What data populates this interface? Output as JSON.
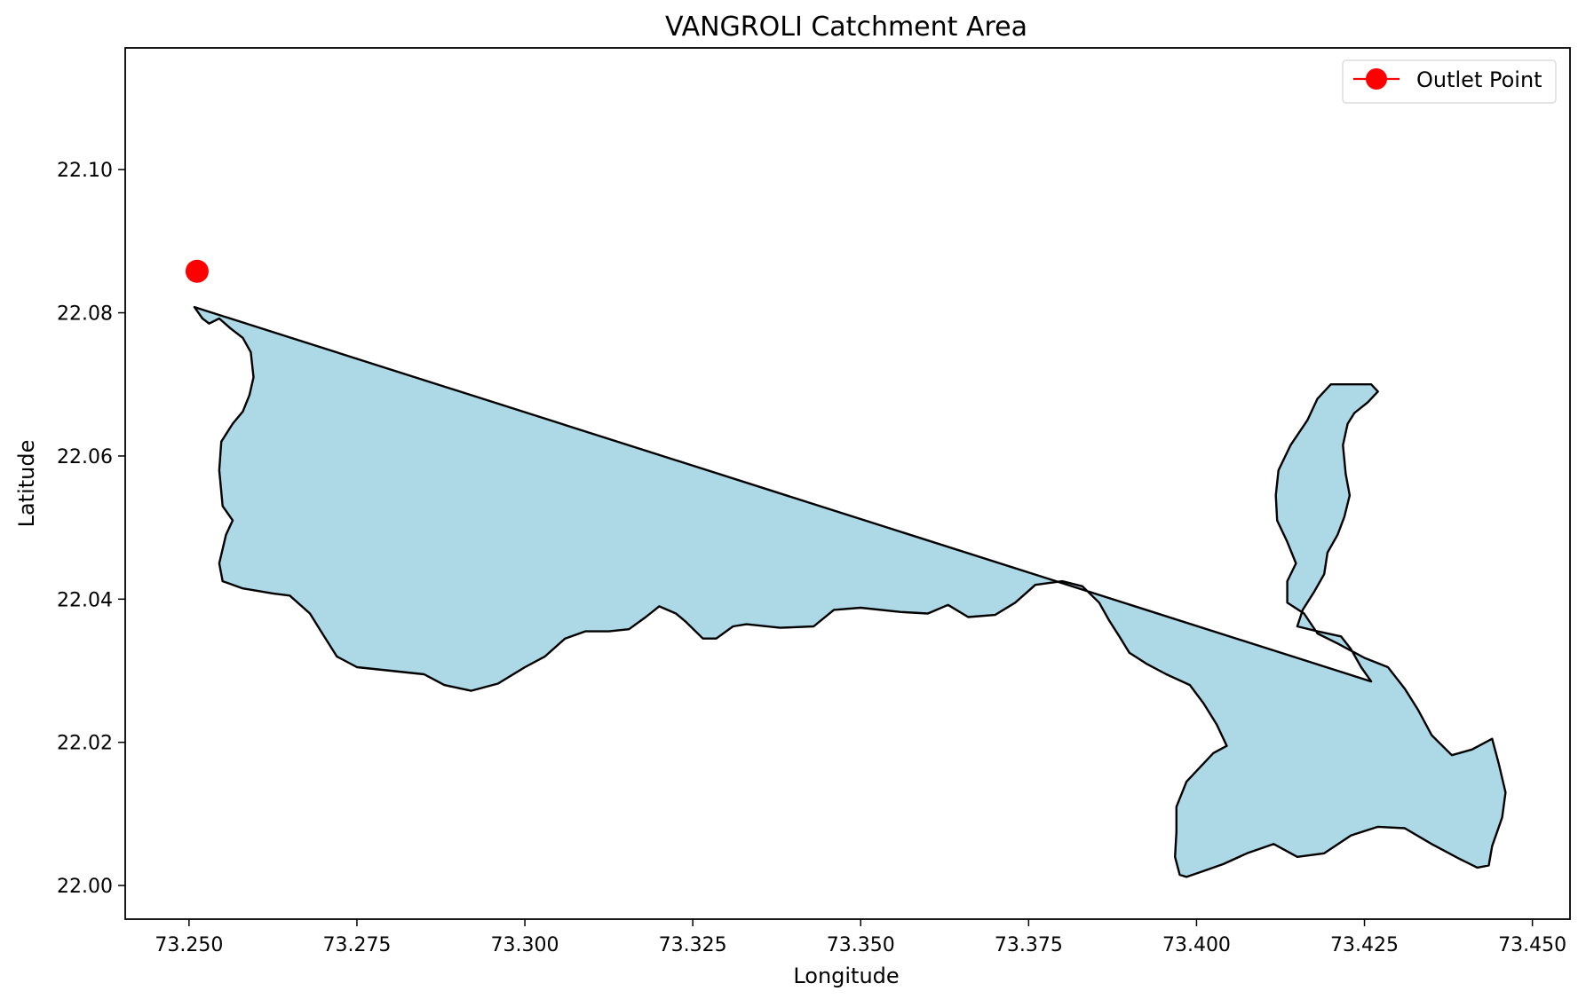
{
  "chart_data": {
    "type": "map",
    "title": "VANGROLI Catchment Area",
    "xlabel": "Longitude",
    "ylabel": "Latitude",
    "xlim": [
      73.2405,
      73.4556
    ],
    "ylim": [
      21.9953,
      22.117
    ],
    "x_ticks": [
      73.25,
      73.275,
      73.3,
      73.325,
      73.35,
      73.375,
      73.4,
      73.425,
      73.45
    ],
    "x_tick_labels": [
      "73.250",
      "73.275",
      "73.300",
      "73.325",
      "73.350",
      "73.375",
      "73.400",
      "73.425",
      "73.450"
    ],
    "y_ticks": [
      22.0,
      22.02,
      22.04,
      22.06,
      22.08,
      22.1
    ],
    "y_tick_labels": [
      "22.00",
      "22.02",
      "22.04",
      "22.06",
      "22.08",
      "22.10"
    ],
    "grid": false,
    "legend": {
      "position": "top-right",
      "entries": [
        "Outlet Point"
      ]
    },
    "outlet": {
      "name": "Outlet Point",
      "lon": 73.2512,
      "lat": 22.0858
    },
    "colors": {
      "catchment_fill": "#add8e6",
      "catchment_edge": "#000000",
      "outlet": "#ff0000",
      "axes": "#000000"
    },
    "catchment_boundary": [
      [
        73.2508,
        22.0808
      ],
      [
        73.252,
        22.0792
      ],
      [
        73.253,
        22.0785
      ],
      [
        73.2545,
        22.0792
      ],
      [
        73.2562,
        22.0778
      ],
      [
        73.258,
        22.0765
      ],
      [
        73.2592,
        22.0745
      ],
      [
        73.2596,
        22.071
      ],
      [
        73.259,
        22.0685
      ],
      [
        73.258,
        22.0662
      ],
      [
        73.2565,
        22.0645
      ],
      [
        73.2548,
        22.062
      ],
      [
        73.2545,
        22.058
      ],
      [
        73.255,
        22.053
      ],
      [
        73.2565,
        22.051
      ],
      [
        73.2555,
        22.049
      ],
      [
        73.2545,
        22.045
      ],
      [
        73.255,
        22.0425
      ],
      [
        73.258,
        22.0415
      ],
      [
        73.2625,
        22.0408
      ],
      [
        73.265,
        22.0405
      ],
      [
        73.268,
        22.038
      ],
      [
        73.27,
        22.035
      ],
      [
        73.272,
        22.032
      ],
      [
        73.275,
        22.0305
      ],
      [
        73.28,
        22.03
      ],
      [
        73.285,
        22.0295
      ],
      [
        73.288,
        22.028
      ],
      [
        73.292,
        22.0272
      ],
      [
        73.296,
        22.0282
      ],
      [
        73.3,
        22.0305
      ],
      [
        73.303,
        22.032
      ],
      [
        73.306,
        22.0345
      ],
      [
        73.309,
        22.0355
      ],
      [
        73.3125,
        22.0355
      ],
      [
        73.3155,
        22.0358
      ],
      [
        73.318,
        22.0375
      ],
      [
        73.32,
        22.039
      ],
      [
        73.3225,
        22.038
      ],
      [
        73.324,
        22.0368
      ],
      [
        73.3265,
        22.0345
      ],
      [
        73.3285,
        22.0345
      ],
      [
        73.331,
        22.0362
      ],
      [
        73.333,
        22.0365
      ],
      [
        73.338,
        22.036
      ],
      [
        73.343,
        22.0362
      ],
      [
        73.346,
        22.0385
      ],
      [
        73.35,
        22.0388
      ],
      [
        73.356,
        22.0382
      ],
      [
        73.36,
        22.038
      ],
      [
        73.363,
        22.0392
      ],
      [
        73.366,
        22.0375
      ],
      [
        73.37,
        22.0378
      ],
      [
        73.373,
        22.0395
      ],
      [
        73.376,
        22.042
      ],
      [
        73.38,
        22.0425
      ],
      [
        73.383,
        22.0418
      ],
      [
        73.3855,
        22.0395
      ],
      [
        73.387,
        22.037
      ],
      [
        73.3885,
        22.0348
      ],
      [
        73.39,
        22.0325
      ],
      [
        73.3925,
        22.031
      ],
      [
        73.3955,
        22.0295
      ],
      [
        73.399,
        22.028
      ],
      [
        73.401,
        22.0255
      ],
      [
        73.403,
        22.0225
      ],
      [
        73.4045,
        22.0195
      ],
      [
        73.4025,
        22.0185
      ],
      [
        73.4005,
        22.0165
      ],
      [
        73.3985,
        22.0145
      ],
      [
        73.397,
        22.011
      ],
      [
        73.397,
        22.0075
      ],
      [
        73.3968,
        22.004
      ],
      [
        73.3975,
        22.0015
      ],
      [
        73.3985,
        22.0012
      ],
      [
        73.401,
        22.002
      ],
      [
        73.404,
        22.003
      ],
      [
        73.4075,
        22.0045
      ],
      [
        73.4115,
        22.0058
      ],
      [
        73.415,
        22.004
      ],
      [
        73.419,
        22.0045
      ],
      [
        73.423,
        22.007
      ],
      [
        73.427,
        22.0082
      ],
      [
        73.431,
        22.008
      ],
      [
        73.435,
        22.0058
      ],
      [
        73.439,
        22.0038
      ],
      [
        73.4418,
        22.0025
      ],
      [
        73.4435,
        22.0028
      ],
      [
        73.444,
        22.0055
      ],
      [
        73.4455,
        22.0095
      ],
      [
        73.446,
        22.013
      ],
      [
        73.445,
        22.017
      ],
      [
        73.444,
        22.0205
      ],
      [
        73.441,
        22.019
      ],
      [
        73.438,
        22.0182
      ],
      [
        73.435,
        22.021
      ],
      [
        73.433,
        22.0245
      ],
      [
        73.431,
        22.0275
      ],
      [
        73.4285,
        22.0305
      ],
      [
        73.425,
        22.0318
      ],
      [
        73.421,
        22.0338
      ],
      [
        73.418,
        22.0352
      ],
      [
        73.416,
        22.038
      ],
      [
        73.4135,
        22.0395
      ],
      [
        73.4135,
        22.0425
      ],
      [
        73.4148,
        22.045
      ],
      [
        73.4135,
        22.048
      ],
      [
        73.412,
        22.051
      ],
      [
        73.4118,
        22.0545
      ],
      [
        73.4122,
        22.058
      ],
      [
        73.414,
        22.0615
      ],
      [
        73.4165,
        22.065
      ],
      [
        73.418,
        22.068
      ],
      [
        73.42,
        22.07
      ],
      [
        73.426,
        22.07
      ],
      [
        73.427,
        22.069
      ],
      [
        73.4255,
        22.0675
      ],
      [
        73.4235,
        22.066
      ],
      [
        73.4225,
        22.0645
      ],
      [
        73.4218,
        22.0615
      ],
      [
        73.4222,
        22.0575
      ],
      [
        73.4228,
        22.0545
      ],
      [
        73.422,
        22.0515
      ],
      [
        73.421,
        22.049
      ],
      [
        73.4195,
        22.0465
      ],
      [
        73.419,
        22.0435
      ],
      [
        73.4175,
        22.041
      ],
      [
        73.4158,
        22.0385
      ],
      [
        73.415,
        22.0362
      ],
      [
        73.418,
        22.0355
      ],
      [
        73.4215,
        22.0348
      ],
      [
        73.423,
        22.033
      ],
      [
        73.4245,
        22.0305
      ],
      [
        73.426,
        22.0285
      ]
    ]
  }
}
